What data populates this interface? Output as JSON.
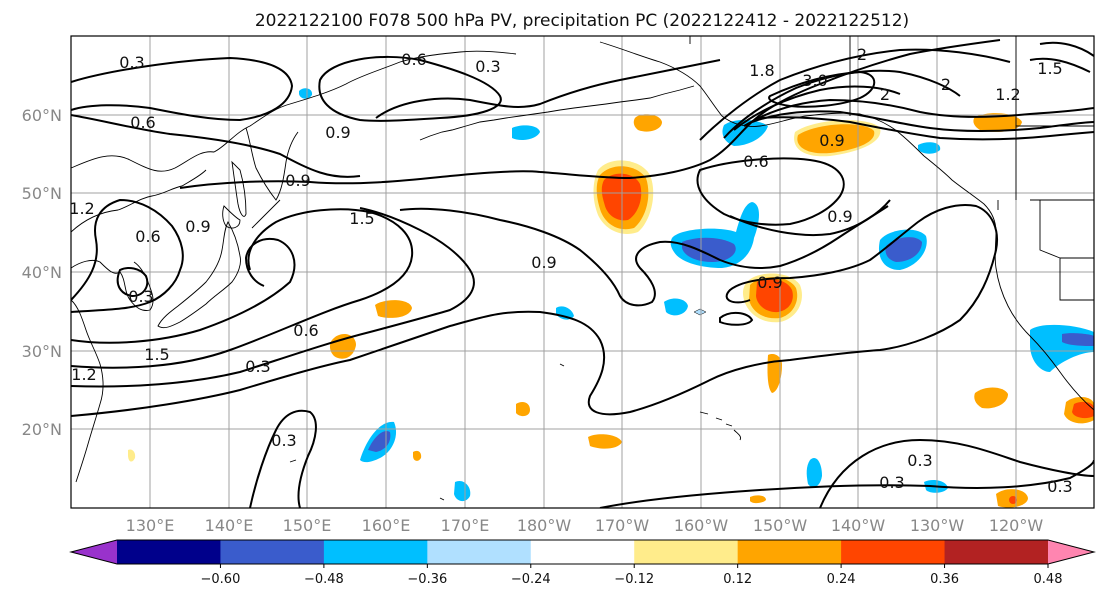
{
  "title": "2022122100 F078 500 hPa PV, precipitation PC (2022122412 - 2022122512)",
  "lat_labels": [
    "60°N",
    "50°N",
    "40°N",
    "30°N",
    "20°N"
  ],
  "lon_labels": [
    "130°E",
    "140°E",
    "150°E",
    "160°E",
    "170°E",
    "180°W",
    "170°W",
    "160°W",
    "150°W",
    "140°W",
    "130°W",
    "120°W"
  ],
  "contour_labels": [
    "0.3",
    "0.6",
    "0.3",
    "0.6",
    "0.9",
    "1.5",
    "1.8",
    "3.0",
    "2",
    "2",
    "2",
    "1.5",
    "1.2",
    "0.9",
    "0.6",
    "0.9",
    "1.2",
    "0.6",
    "0.9",
    "0.3",
    "0.9",
    "1.5",
    "0.9",
    "0.9",
    "0.6",
    "1.2",
    "0.3",
    "0.3",
    "0.3",
    "0.3",
    "0.3"
  ],
  "colorbar": {
    "ticks": [
      "−0.60",
      "−0.48",
      "−0.36",
      "−0.24",
      "−0.12",
      "0.12",
      "0.24",
      "0.36",
      "0.48",
      "0.60"
    ],
    "colors": [
      "#9932cc",
      "#00008b",
      "#3a5ccc",
      "#00bfff",
      "#b0e0ff",
      "#ffffff",
      "#ffec8b",
      "#ffa500",
      "#ff4500",
      "#b22222",
      "#ff85b0"
    ]
  },
  "map": {
    "projection": "cylindrical",
    "lon_range": [
      "120°E",
      "115°W"
    ],
    "lat_range": [
      "10°N",
      "70°N"
    ]
  }
}
